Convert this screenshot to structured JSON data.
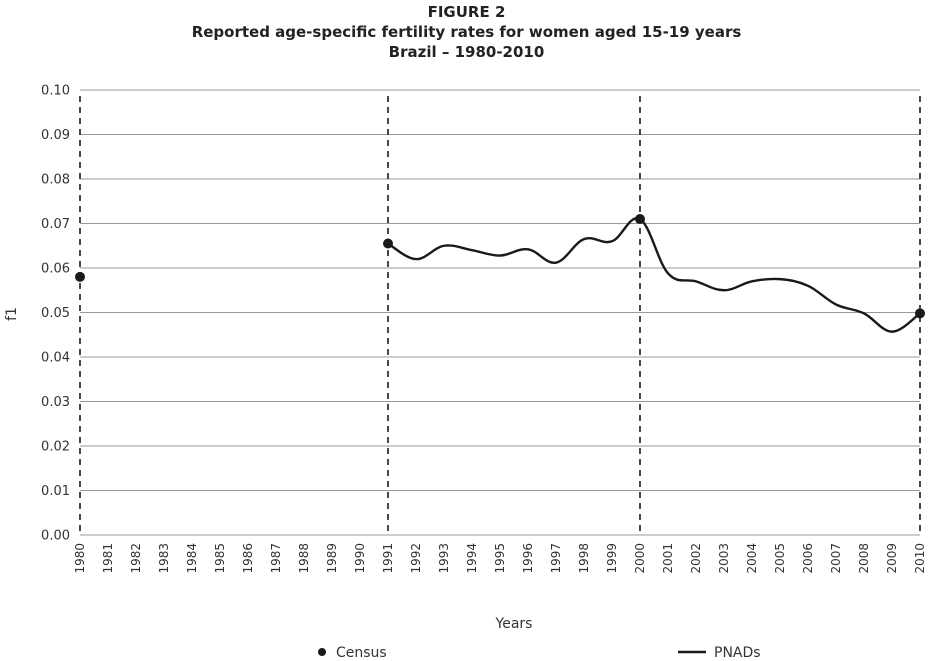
{
  "chart_data": {
    "type": "line",
    "title_lines": [
      "FIGURE 2",
      "Reported age-specific fertility rates for women aged 15-19 years",
      "Brazil – 1980-2010"
    ],
    "xlabel": "Years",
    "ylabel": "f1",
    "categories": [
      "1980",
      "1981",
      "1982",
      "1983",
      "1984",
      "1985",
      "1986",
      "1987",
      "1988",
      "1989",
      "1990",
      "1991",
      "1992",
      "1993",
      "1994",
      "1995",
      "1996",
      "1997",
      "1998",
      "1999",
      "2000",
      "2001",
      "2002",
      "2003",
      "2004",
      "2005",
      "2006",
      "2007",
      "2008",
      "2009",
      "2010"
    ],
    "ylim": [
      0,
      0.1
    ],
    "yticks": [
      "0.00",
      "0.01",
      "0.02",
      "0.03",
      "0.04",
      "0.05",
      "0.06",
      "0.07",
      "0.08",
      "0.09",
      "0.10"
    ],
    "grid": true,
    "census_years": [
      "1980",
      "1991",
      "2000",
      "2010"
    ],
    "series": [
      {
        "name": "Census",
        "style": "points",
        "color": "#1a1a1a",
        "points": [
          {
            "x": "1980",
            "y": 0.058
          },
          {
            "x": "1991",
            "y": 0.0655
          },
          {
            "x": "2000",
            "y": 0.071
          },
          {
            "x": "2010",
            "y": 0.0498
          }
        ]
      },
      {
        "name": "PNADs",
        "style": "line",
        "color": "#1a1a1a",
        "points": [
          {
            "x": "1991",
            "y": 0.0655
          },
          {
            "x": "1992",
            "y": 0.062
          },
          {
            "x": "1993",
            "y": 0.065
          },
          {
            "x": "1994",
            "y": 0.064
          },
          {
            "x": "1995",
            "y": 0.0628
          },
          {
            "x": "1996",
            "y": 0.0642
          },
          {
            "x": "1997",
            "y": 0.0612
          },
          {
            "x": "1998",
            "y": 0.0665
          },
          {
            "x": "1999",
            "y": 0.066
          },
          {
            "x": "2000",
            "y": 0.071
          },
          {
            "x": "2001",
            "y": 0.0588
          },
          {
            "x": "2002",
            "y": 0.057
          },
          {
            "x": "2003",
            "y": 0.055
          },
          {
            "x": "2004",
            "y": 0.057
          },
          {
            "x": "2005",
            "y": 0.0575
          },
          {
            "x": "2006",
            "y": 0.056
          },
          {
            "x": "2007",
            "y": 0.0518
          },
          {
            "x": "2008",
            "y": 0.0498
          },
          {
            "x": "2009",
            "y": 0.0457
          },
          {
            "x": "2010",
            "y": 0.0498
          }
        ]
      }
    ],
    "legend": [
      {
        "label": "Census",
        "marker": "dot"
      },
      {
        "label": "PNADs",
        "marker": "line"
      }
    ],
    "legend_position": "bottom"
  }
}
